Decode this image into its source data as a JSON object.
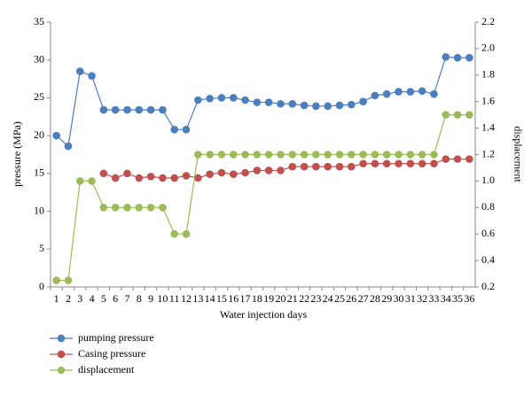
{
  "chart_data": {
    "type": "line",
    "x_label": "Water injection days",
    "y_label": "pressure (MPa)",
    "y2_label": "displacement",
    "categories": [
      "1",
      "2",
      "3",
      "4",
      "5",
      "6",
      "7",
      "8",
      "9",
      "10",
      "11",
      "12",
      "13",
      "14",
      "15",
      "16",
      "17",
      "18",
      "19",
      "20",
      "21",
      "22",
      "23",
      "24",
      "25",
      "26",
      "27",
      "28",
      "29",
      "30",
      "31",
      "32",
      "33",
      "34",
      "35",
      "36"
    ],
    "ylim": [
      0,
      35
    ],
    "yticks": [
      0,
      5,
      10,
      15,
      20,
      25,
      30,
      35
    ],
    "y2lim": [
      0.2,
      2.2
    ],
    "y2ticks": [
      0.2,
      0.4,
      0.6,
      0.8,
      {
        "value": 1.0,
        "label": "1.0"
      },
      1.2,
      1.4,
      1.6,
      1.8,
      {
        "value": 2.0,
        "label": "2.0"
      },
      2.2
    ],
    "legend": "bottom-left",
    "series": [
      {
        "name": "pumping pressure",
        "color": "#4a7ebf",
        "values": [
          20,
          18.6,
          28.5,
          27.9,
          23.4,
          23.4,
          23.4,
          23.4,
          23.4,
          23.4,
          20.8,
          20.8,
          24.7,
          24.9,
          25,
          25,
          24.7,
          24.4,
          24.4,
          24.2,
          24.2,
          24,
          23.9,
          23.9,
          24,
          24.1,
          24.5,
          25.3,
          25.5,
          25.8,
          25.8,
          25.9,
          25.5,
          30.4,
          30.3,
          30.3
        ]
      },
      {
        "name": "Casing pressure",
        "color": "#c0504d",
        "values": [
          null,
          null,
          null,
          null,
          15,
          14.4,
          15,
          14.4,
          14.6,
          14.4,
          14.4,
          14.7,
          14.4,
          14.9,
          15.1,
          14.9,
          15.1,
          15.4,
          15.4,
          15.4,
          15.9,
          15.9,
          15.9,
          15.9,
          15.9,
          15.9,
          16.3,
          16.3,
          16.3,
          16.3,
          16.3,
          16.3,
          16.3,
          16.9,
          16.9,
          16.9
        ]
      },
      {
        "name": "displacement",
        "color": "#9bbb59",
        "axis": "y2",
        "values": [
          0.25,
          0.25,
          1.0,
          1.0,
          0.8,
          0.8,
          0.8,
          0.8,
          0.8,
          0.8,
          0.6,
          0.6,
          1.2,
          1.2,
          1.2,
          1.2,
          1.2,
          1.2,
          1.2,
          1.2,
          1.2,
          1.2,
          1.2,
          1.2,
          1.2,
          1.2,
          1.2,
          1.2,
          1.2,
          1.2,
          1.2,
          1.2,
          1.2,
          1.5,
          1.5,
          1.5
        ]
      }
    ]
  }
}
